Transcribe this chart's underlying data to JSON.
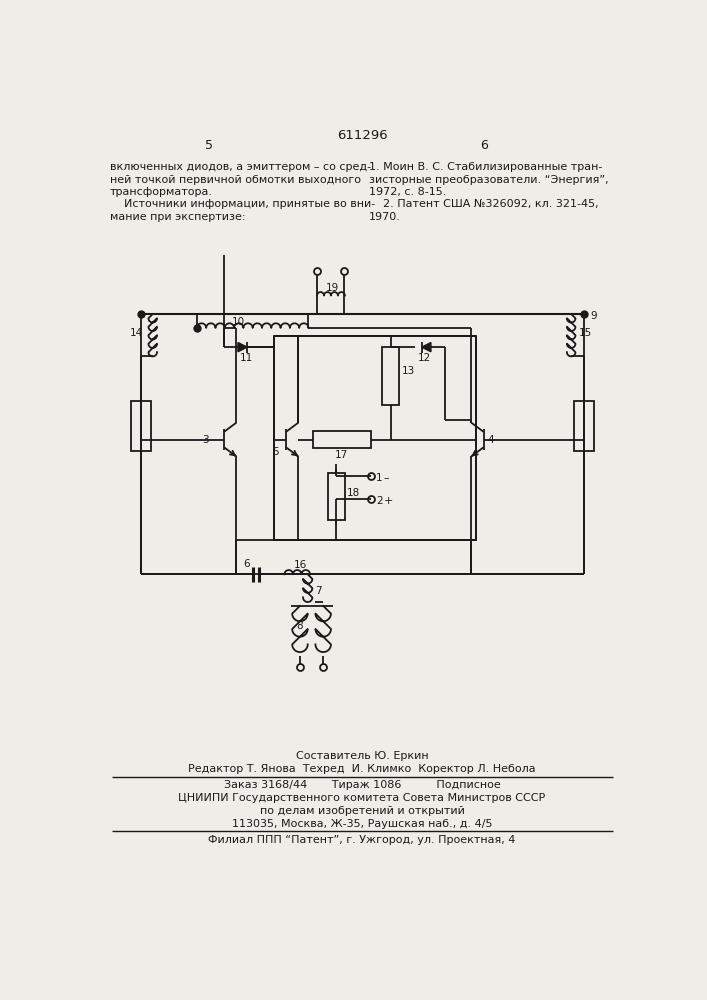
{
  "page_num_center": "611296",
  "page_num_left": "5",
  "page_num_right": "6",
  "text_left_col": [
    "включенных диодов, а эмиттером – со сред-",
    "ней точкой первичной обмотки выходного",
    "трансформатора.",
    "    Источники информации, принятые во вни-",
    "мание при экспертизе:"
  ],
  "text_right_col": [
    "1. Моин В. С. Стабилизированные тран-",
    "зисторные преобразователи. “Энергия”,",
    "1972, с. 8-15.",
    "    2. Патент США №326092, кл. 321-45,",
    "1970."
  ],
  "footer_line1": "Составитель Ю. Еркин",
  "footer_line2": "Редактор Т. Янова  Техред  И. Климко  Коректор Л. Небола",
  "footer_line3": "Заказ 3168/44       Тираж 1086          Подписное",
  "footer_line4": "ЦНИИПИ Государственного комитета Совета Министров СССР",
  "footer_line5": "по делам изобретений и открытий",
  "footer_line6": "113035, Москва, Ж-35, Раушская наб., д. 4/5",
  "footer_line7": "Филиал ППП “Патент”, г. Ужгород, ул. Проектная, 4",
  "bg_color": "#f0ede8",
  "line_color": "#1a1a1a",
  "text_color": "#1a1a1a"
}
